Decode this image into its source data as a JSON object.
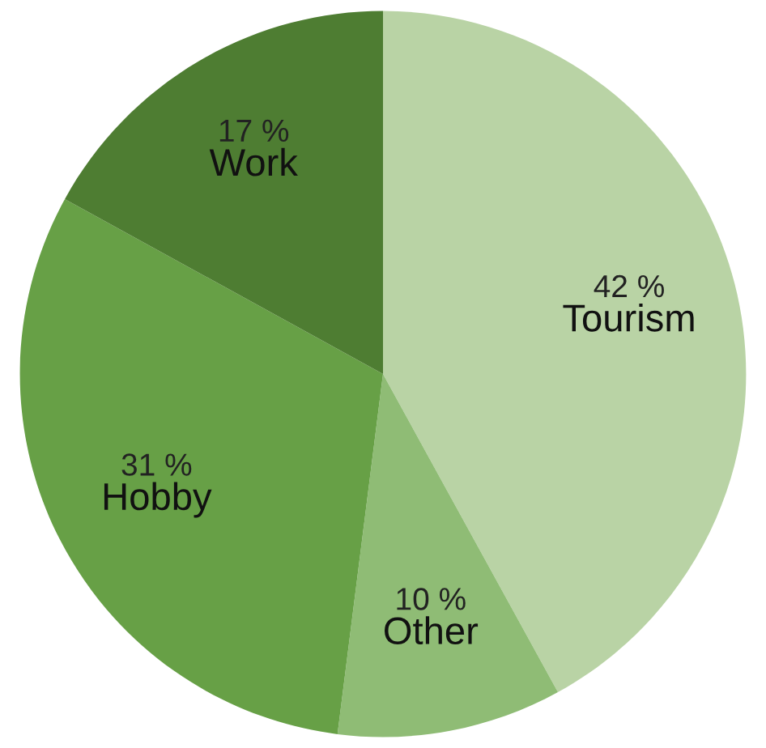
{
  "chart_data": {
    "type": "pie",
    "categories": [
      "Tourism",
      "Other",
      "Hobby",
      "Work"
    ],
    "values": [
      42,
      10,
      31,
      17
    ],
    "value_labels": [
      "42 %",
      "10 %",
      "31 %",
      "17 %"
    ],
    "colors": [
      "#b9d3a5",
      "#8fbc75",
      "#67a046",
      "#4e7d32"
    ]
  }
}
